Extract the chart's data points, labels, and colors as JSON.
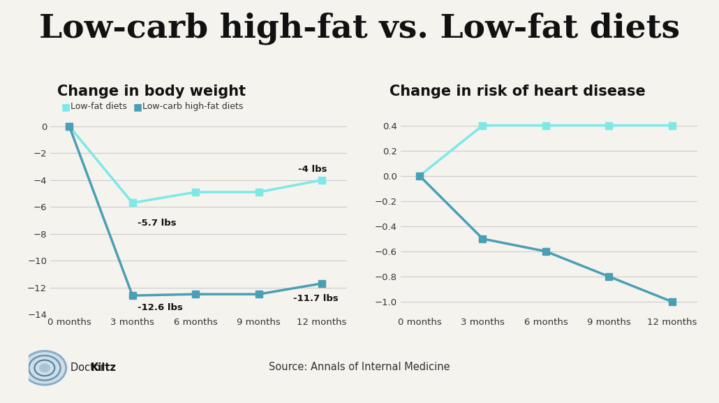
{
  "title": "Low-carb high-fat vs. Low-fat diets",
  "title_fontsize": 34,
  "background_color": "#f5f3ee",
  "chart1_title": "Change in body weight",
  "chart2_title": "Change in risk of heart disease",
  "x_labels": [
    "0 months",
    "3 months",
    "6 months",
    "9 months",
    "12 months"
  ],
  "x_values": [
    0,
    1,
    2,
    3,
    4
  ],
  "weight_lowfat": [
    0,
    -5.7,
    -4.9,
    -4.9,
    -4.0
  ],
  "weight_lowcarb": [
    0,
    -12.6,
    -12.5,
    -12.5,
    -11.7
  ],
  "heart_lowfat": [
    0,
    0.4,
    0.4,
    0.4,
    0.4
  ],
  "heart_lowcarb": [
    0,
    -0.5,
    -0.6,
    -0.8,
    -1.0
  ],
  "color_lowfat": "#7de8e8",
  "color_lowcarb": "#4a9fb5",
  "legend_lowfat": "Low-fat diets",
  "legend_lowcarb": "Low-carb high-fat diets",
  "weight_ylim": [
    -14,
    1
  ],
  "weight_yticks": [
    0,
    -2,
    -4,
    -6,
    -8,
    -10,
    -12,
    -14
  ],
  "heart_ylim": [
    -1.1,
    0.5
  ],
  "heart_yticks": [
    0.4,
    0.2,
    0.0,
    -0.2,
    -0.4,
    -0.6,
    -0.8,
    -1.0
  ],
  "annotation_weight_lowfat_3m": "-5.7 lbs",
  "annotation_weight_lowcarb_3m": "-12.6 lbs",
  "annotation_weight_lowfat_12m": "-4 lbs",
  "annotation_weight_lowcarb_12m": "-11.7 lbs",
  "source_text": "Source: Annals of Internal Medicine",
  "grid_color": "#cccccc",
  "line_width": 2.5,
  "marker_size": 7,
  "logo_circle_colors": [
    "#b0c4d8",
    "#8aaec8",
    "#6896b8"
  ],
  "logo_inner_color": "#c8d8e8"
}
